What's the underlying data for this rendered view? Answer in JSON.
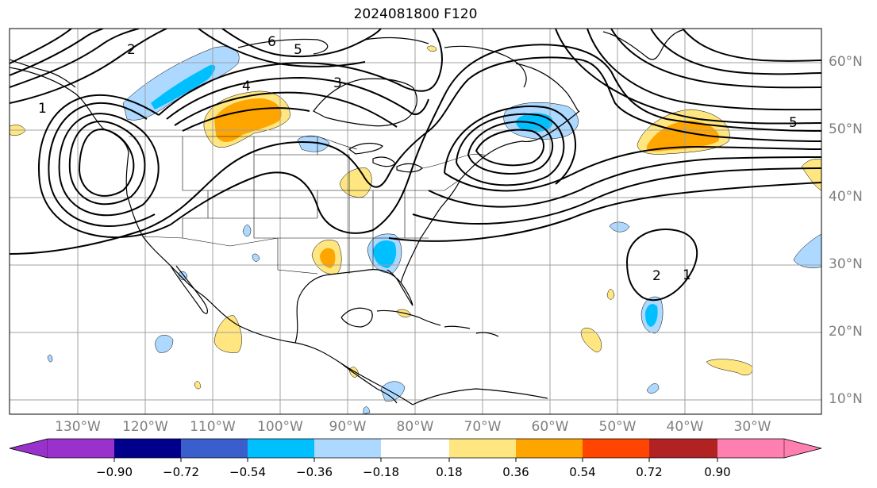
{
  "title": "2024081800 F120",
  "lat_labels": [
    "60°N",
    "50°N",
    "40°N",
    "30°N",
    "20°N",
    "10°N"
  ],
  "lon_labels": [
    "130°W",
    "120°W",
    "110°W",
    "100°W",
    "90°W",
    "80°W",
    "70°W",
    "60°W",
    "50°W",
    "40°W",
    "30°W"
  ],
  "contour_labels": [
    "1",
    "2",
    "3",
    "4",
    "5",
    "6",
    "2",
    "1",
    "5"
  ],
  "colorbar": {
    "ticks": [
      "−0.90",
      "−0.72",
      "−0.54",
      "−0.36",
      "−0.18",
      "0.18",
      "0.36",
      "0.54",
      "0.72",
      "0.90"
    ],
    "colors": [
      "#9932cc",
      "#00008b",
      "#3a5fcd",
      "#00bfff",
      "#add8ff",
      "#ffffff",
      "#ffe680",
      "#ffa500",
      "#ff4500",
      "#b22222",
      "#ff80b0"
    ]
  },
  "colors": {
    "blue_light": "#add8ff",
    "blue": "#00bfff",
    "yellow": "#ffe680",
    "orange": "#ffa500",
    "red": "#ff4500",
    "grid": "#a0a0a0",
    "tick_text": "#7f7f7f"
  }
}
